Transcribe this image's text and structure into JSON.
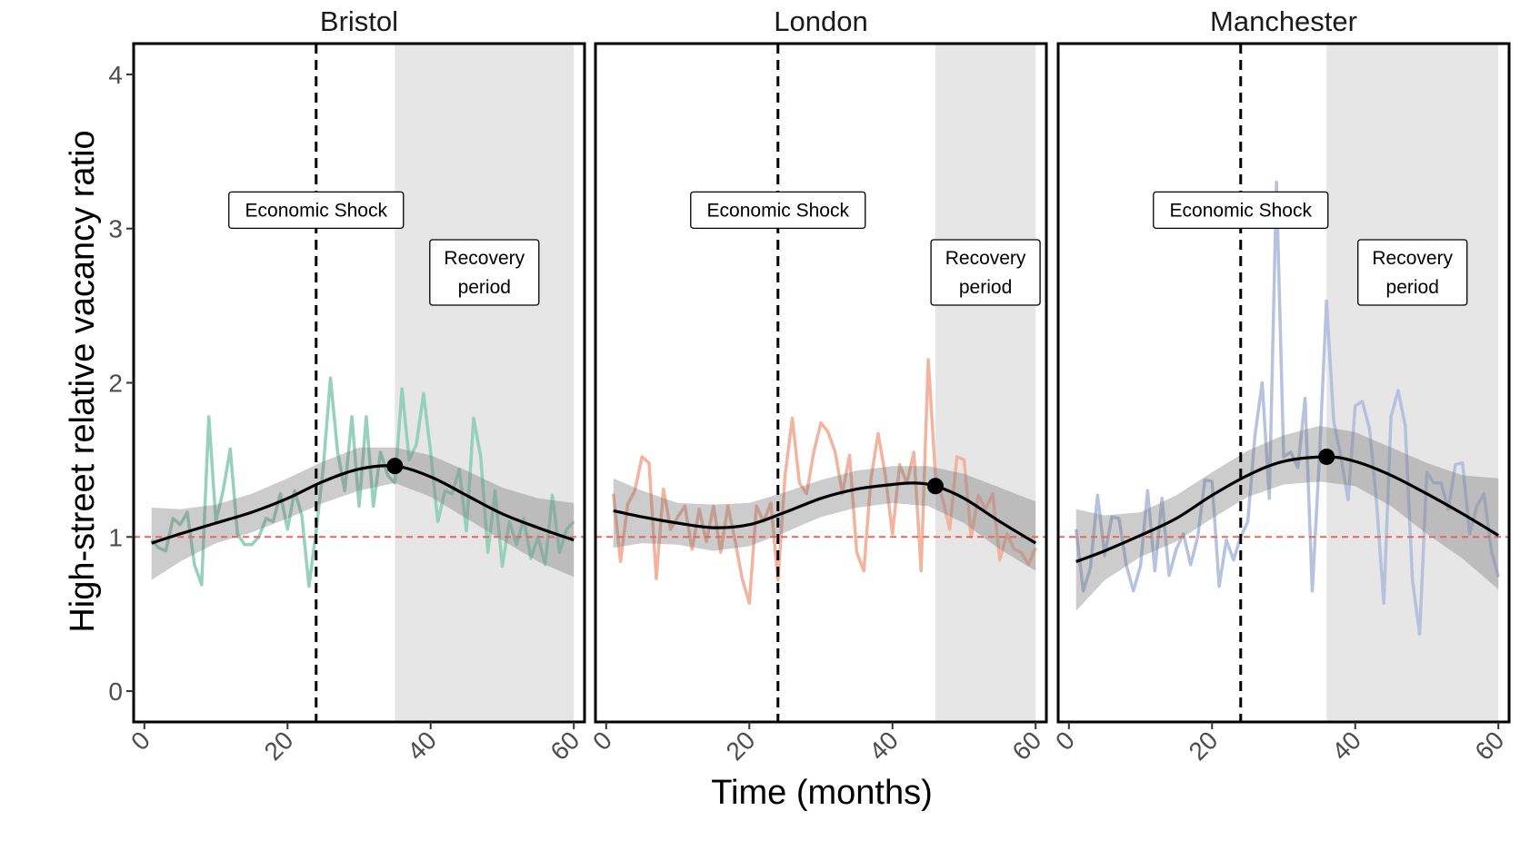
{
  "chart_data": {
    "type": "line",
    "xlabel": "Time (months)",
    "ylabel": "High-street relative vacancy ratio",
    "xlim": [
      -1.5,
      61.5
    ],
    "ylim": [
      -0.2,
      4.2
    ],
    "x_ticks": [
      0,
      20,
      40,
      60
    ],
    "y_ticks": [
      0,
      1,
      2,
      3,
      4
    ],
    "reference_line": {
      "y": 1,
      "color": "#e8675a",
      "style": "dashed"
    },
    "shock": {
      "x": 24,
      "label": "Economic Shock",
      "label_y": 3.12
    },
    "recovery_label": "Recovery\nperiod",
    "panels": [
      {
        "title": "Bristol",
        "color": "#91cfb8",
        "recovery_start": 35,
        "peak": {
          "x": 35,
          "y": 1.46
        },
        "recovery_label_x": 47.5,
        "x": [
          1,
          2,
          3,
          4,
          5,
          6,
          7,
          8,
          9,
          10,
          11,
          12,
          13,
          14,
          15,
          16,
          17,
          18,
          19,
          20,
          21,
          22,
          23,
          24,
          25,
          26,
          27,
          28,
          29,
          30,
          31,
          32,
          33,
          34,
          35,
          36,
          37,
          38,
          39,
          40,
          41,
          42,
          43,
          44,
          45,
          46,
          47,
          48,
          49,
          50,
          51,
          52,
          53,
          54,
          55,
          56,
          57,
          58,
          59,
          60
        ],
        "values": [
          0.98,
          0.93,
          0.91,
          1.12,
          1.08,
          1.16,
          0.82,
          0.69,
          1.78,
          1.1,
          1.3,
          1.57,
          1.02,
          0.95,
          0.95,
          1.0,
          1.12,
          1.1,
          1.28,
          1.05,
          1.3,
          1.14,
          0.68,
          1.04,
          1.45,
          2.03,
          1.55,
          1.3,
          1.78,
          1.2,
          1.78,
          1.2,
          1.55,
          1.4,
          1.35,
          1.96,
          1.5,
          1.6,
          1.93,
          1.55,
          1.1,
          1.3,
          1.28,
          1.44,
          1.04,
          1.77,
          1.52,
          0.9,
          1.3,
          0.81,
          1.1,
          0.95,
          1.12,
          0.86,
          1.0,
          0.82,
          1.27,
          0.9,
          1.05,
          1.1
        ],
        "trend": [
          [
            1,
            0.96
          ],
          [
            5,
            1.02
          ],
          [
            10,
            1.09
          ],
          [
            15,
            1.16
          ],
          [
            20,
            1.25
          ],
          [
            25,
            1.36
          ],
          [
            30,
            1.44
          ],
          [
            35,
            1.46
          ],
          [
            40,
            1.39
          ],
          [
            45,
            1.27
          ],
          [
            50,
            1.15
          ],
          [
            55,
            1.06
          ],
          [
            60,
            0.98
          ]
        ],
        "band": [
          [
            1,
            0.72,
            1.19
          ],
          [
            5,
            0.84,
            1.18
          ],
          [
            10,
            0.96,
            1.21
          ],
          [
            15,
            1.03,
            1.28
          ],
          [
            20,
            1.12,
            1.38
          ],
          [
            25,
            1.22,
            1.49
          ],
          [
            30,
            1.3,
            1.58
          ],
          [
            35,
            1.35,
            1.58
          ],
          [
            40,
            1.26,
            1.53
          ],
          [
            45,
            1.12,
            1.43
          ],
          [
            50,
            0.98,
            1.32
          ],
          [
            55,
            0.84,
            1.25
          ],
          [
            60,
            0.74,
            1.22
          ]
        ]
      },
      {
        "title": "London",
        "color": "#f2b09a",
        "recovery_start": 46,
        "peak": {
          "x": 46,
          "y": 1.33
        },
        "recovery_label_x": 53,
        "x": [
          1,
          2,
          3,
          4,
          5,
          6,
          7,
          8,
          9,
          10,
          11,
          12,
          13,
          14,
          15,
          16,
          17,
          18,
          19,
          20,
          21,
          22,
          23,
          24,
          25,
          26,
          27,
          28,
          29,
          30,
          31,
          32,
          33,
          34,
          35,
          36,
          37,
          38,
          39,
          40,
          41,
          42,
          43,
          44,
          45,
          46,
          47,
          48,
          49,
          50,
          51,
          52,
          53,
          54,
          55,
          56,
          57,
          58,
          59,
          60
        ],
        "values": [
          1.28,
          0.84,
          1.21,
          1.3,
          1.52,
          1.48,
          0.73,
          1.31,
          1.05,
          1.13,
          1.2,
          0.92,
          1.18,
          0.97,
          1.2,
          0.9,
          1.2,
          0.98,
          0.73,
          0.57,
          1.2,
          1.1,
          1.22,
          0.72,
          1.4,
          1.77,
          1.35,
          1.28,
          1.55,
          1.74,
          1.68,
          1.55,
          1.28,
          1.53,
          0.9,
          0.78,
          1.38,
          1.67,
          1.4,
          1.02,
          1.47,
          1.35,
          1.55,
          0.78,
          2.15,
          1.4,
          1.25,
          1.05,
          1.52,
          1.5,
          1.0,
          1.27,
          1.18,
          1.28,
          0.85,
          1.02,
          0.92,
          0.9,
          0.82,
          0.93
        ],
        "trend": [
          [
            1,
            1.17
          ],
          [
            5,
            1.13
          ],
          [
            10,
            1.09
          ],
          [
            15,
            1.06
          ],
          [
            20,
            1.08
          ],
          [
            25,
            1.16
          ],
          [
            30,
            1.25
          ],
          [
            35,
            1.31
          ],
          [
            40,
            1.34
          ],
          [
            43,
            1.35
          ],
          [
            46,
            1.33
          ],
          [
            50,
            1.25
          ],
          [
            55,
            1.1
          ],
          [
            60,
            0.96
          ]
        ],
        "band": [
          [
            1,
            0.93,
            1.38
          ],
          [
            5,
            0.96,
            1.3
          ],
          [
            10,
            0.95,
            1.22
          ],
          [
            15,
            0.91,
            1.21
          ],
          [
            20,
            0.94,
            1.22
          ],
          [
            25,
            1.03,
            1.29
          ],
          [
            30,
            1.13,
            1.37
          ],
          [
            35,
            1.19,
            1.43
          ],
          [
            40,
            1.22,
            1.46
          ],
          [
            45,
            1.2,
            1.46
          ],
          [
            50,
            1.09,
            1.41
          ],
          [
            55,
            0.92,
            1.32
          ],
          [
            60,
            0.78,
            1.23
          ]
        ]
      },
      {
        "title": "Manchester",
        "color": "#b3bfdd",
        "recovery_start": 36,
        "peak": {
          "x": 36,
          "y": 1.52
        },
        "recovery_label_x": 48,
        "x": [
          1,
          2,
          3,
          4,
          5,
          6,
          7,
          8,
          9,
          10,
          11,
          12,
          13,
          14,
          15,
          16,
          17,
          18,
          19,
          20,
          21,
          22,
          23,
          24,
          25,
          26,
          27,
          28,
          29,
          30,
          31,
          32,
          33,
          34,
          35,
          36,
          37,
          38,
          39,
          40,
          41,
          42,
          43,
          44,
          45,
          46,
          47,
          48,
          49,
          50,
          51,
          52,
          53,
          54,
          55,
          56,
          57,
          58,
          59,
          60
        ],
        "values": [
          1.05,
          0.65,
          0.8,
          1.27,
          0.88,
          1.13,
          1.12,
          0.82,
          0.65,
          0.81,
          1.3,
          0.78,
          1.25,
          0.75,
          0.92,
          1.02,
          0.82,
          1.0,
          1.37,
          1.36,
          0.68,
          0.98,
          0.85,
          1.0,
          1.1,
          1.66,
          2.0,
          1.25,
          3.3,
          1.52,
          1.55,
          1.45,
          1.9,
          0.65,
          1.52,
          2.53,
          1.75,
          1.52,
          1.24,
          1.85,
          1.88,
          1.7,
          1.22,
          0.57,
          1.78,
          1.95,
          1.72,
          0.72,
          0.37,
          1.42,
          1.35,
          1.35,
          1.18,
          1.47,
          1.48,
          1.02,
          1.2,
          1.28,
          0.92,
          0.74
        ],
        "trend": [
          [
            1,
            0.84
          ],
          [
            5,
            0.91
          ],
          [
            10,
            1.01
          ],
          [
            15,
            1.12
          ],
          [
            20,
            1.27
          ],
          [
            25,
            1.4
          ],
          [
            30,
            1.49
          ],
          [
            36,
            1.52
          ],
          [
            40,
            1.49
          ],
          [
            45,
            1.4
          ],
          [
            50,
            1.28
          ],
          [
            55,
            1.15
          ],
          [
            60,
            1.01
          ]
        ],
        "band": [
          [
            1,
            0.52,
            1.18
          ],
          [
            5,
            0.72,
            1.14
          ],
          [
            10,
            0.87,
            1.16
          ],
          [
            15,
            0.97,
            1.27
          ],
          [
            20,
            1.12,
            1.42
          ],
          [
            25,
            1.26,
            1.56
          ],
          [
            30,
            1.34,
            1.66
          ],
          [
            35,
            1.36,
            1.72
          ],
          [
            40,
            1.33,
            1.68
          ],
          [
            45,
            1.2,
            1.58
          ],
          [
            50,
            1.02,
            1.48
          ],
          [
            55,
            0.86,
            1.4
          ],
          [
            60,
            0.66,
            1.38
          ]
        ]
      }
    ]
  }
}
